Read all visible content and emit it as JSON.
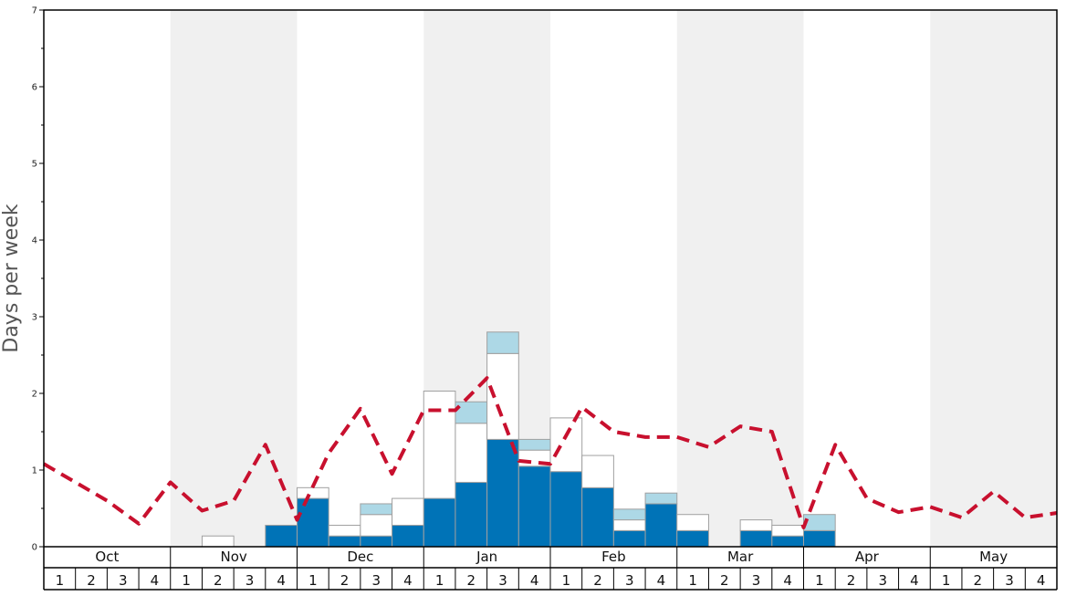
{
  "chart_data": {
    "type": "bar",
    "ylabel": "Days per week",
    "ylim": [
      0,
      7
    ],
    "yticks": [
      0,
      1,
      2,
      3,
      4,
      5,
      6,
      7
    ],
    "months": [
      "Oct",
      "Nov",
      "Dec",
      "Jan",
      "Feb",
      "Mar",
      "Apr",
      "May"
    ],
    "weeks_per_month": [
      "1",
      "2",
      "3",
      "4"
    ],
    "colors": {
      "dark_segment": "#0073b7",
      "white_segment": "#ffffff",
      "light_segment": "#add8e6",
      "average_line": "#c8102e",
      "shaded_month": "#f0f0f0"
    },
    "series": [
      {
        "values": [
          0,
          0,
          0,
          0,
          0,
          0,
          0,
          0.28,
          0.63,
          0.14,
          0.14,
          0.28,
          0.63,
          0.84,
          1.4,
          1.05,
          0.98,
          0.77,
          0.21,
          0.56,
          0.21,
          0,
          0.21,
          0.14,
          0.21,
          0,
          0,
          0,
          0,
          0,
          0,
          0
        ]
      },
      {
        "values": [
          0,
          0,
          0,
          0,
          0,
          0.14,
          0,
          0,
          0.14,
          0.14,
          0.28,
          0.35,
          1.4,
          0.77,
          1.12,
          0.21,
          0.7,
          0.42,
          0.14,
          0,
          0.21,
          0,
          0.14,
          0.14,
          0,
          0,
          0,
          0,
          0,
          0,
          0,
          0
        ]
      },
      {
        "values": [
          0,
          0,
          0,
          0,
          0,
          0,
          0,
          0,
          0,
          0,
          0.14,
          0,
          0,
          0.28,
          0.28,
          0.14,
          0,
          0,
          0.14,
          0.14,
          0,
          0,
          0,
          0,
          0.21,
          0,
          0,
          0,
          0,
          0,
          0,
          0
        ]
      },
      {
        "type": "line",
        "style": "dashed",
        "values": [
          1.08,
          0.84,
          0.6,
          0.3,
          0.84,
          0.47,
          0.6,
          1.33,
          0.35,
          1.22,
          1.8,
          0.95,
          1.78,
          1.78,
          2.2,
          1.12,
          1.08,
          1.82,
          1.5,
          1.43,
          1.43,
          1.3,
          1.57,
          1.5,
          0.25,
          1.33,
          0.63,
          0.45,
          0.52,
          0.38,
          0.72,
          0.38,
          0.44
        ]
      }
    ]
  }
}
